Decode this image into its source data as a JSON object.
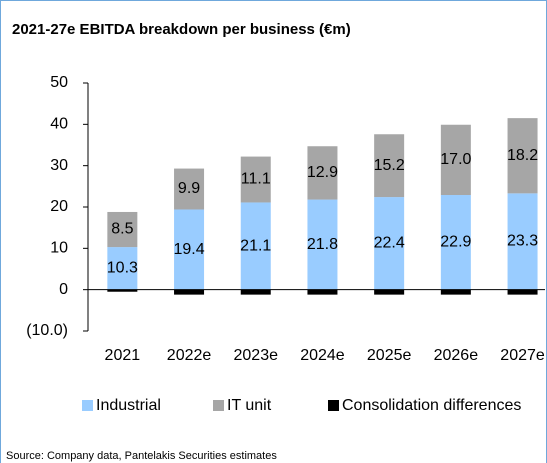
{
  "chart_data": {
    "type": "stacked_bar",
    "title": "2021-27e EBITDA breakdown per business (€m)",
    "categories": [
      "2021",
      "2022e",
      "2023e",
      "2024e",
      "2025e",
      "2026e",
      "2027e"
    ],
    "series": [
      {
        "name": "Industrial",
        "color": "#99ccff",
        "values": [
          10.3,
          19.4,
          21.1,
          21.8,
          22.4,
          22.9,
          23.3
        ]
      },
      {
        "name": "IT unit",
        "color": "#a6a6a6",
        "values": [
          8.5,
          9.9,
          11.1,
          12.9,
          15.2,
          17.0,
          18.2
        ],
        "value_labels": [
          "8.5",
          "9.9",
          "11.1",
          "12.9",
          "15.2",
          "17.0",
          "18.2"
        ]
      },
      {
        "name": "Consolidation differences",
        "color": "#000000",
        "values": [
          -0.5,
          -1.2,
          -1.2,
          -1.2,
          -1.2,
          -1.2,
          -1.2
        ]
      }
    ],
    "ylim": [
      -10,
      50
    ],
    "yticks": [
      {
        "value": -10,
        "label": "(10.0)"
      },
      0,
      10,
      20,
      30,
      40,
      50
    ],
    "legend": "bottom",
    "footnote": "Source: Company data, Pantelakis Securities estimates"
  }
}
